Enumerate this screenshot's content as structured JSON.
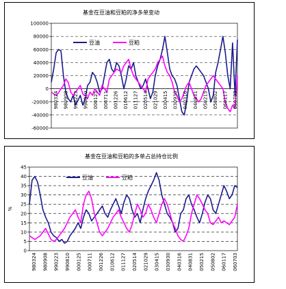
{
  "chart_data": [
    {
      "type": "line",
      "title": "基金在豆油和豆粕的净多单变动",
      "ylabel": "",
      "xlabel": "",
      "ylim": [
        -60000,
        100000
      ],
      "yticks": [
        -60000,
        -40000,
        -20000,
        0,
        20000,
        40000,
        60000,
        80000,
        100000
      ],
      "x_tick_labels": [
        "980324",
        "980908",
        "990223",
        "990810",
        "000125",
        "000711",
        "001226",
        "010612",
        "011127",
        "020514",
        "021029",
        "030415",
        "030930",
        "040316",
        "040831",
        "050215",
        "050802",
        "060117",
        "060703"
      ],
      "grid": "horizontal dashed",
      "legend_position": "top",
      "series": [
        {
          "name": "豆油",
          "color": "#1a1a8c",
          "values": [
            10000,
            30000,
            55000,
            60000,
            58000,
            20000,
            -5000,
            -15000,
            -20000,
            -10000,
            -25000,
            -18000,
            -10000,
            -25000,
            -15000,
            5000,
            10000,
            25000,
            20000,
            10000,
            -5000,
            0,
            20000,
            40000,
            45000,
            30000,
            25000,
            40000,
            35000,
            20000,
            0,
            15000,
            35000,
            30000,
            40000,
            20000,
            10000,
            0,
            5000,
            15000,
            0,
            -15000,
            -5000,
            20000,
            35000,
            45000,
            60000,
            80000,
            55000,
            30000,
            20000,
            15000,
            5000,
            -15000,
            -35000,
            -40000,
            -20000,
            10000,
            20000,
            30000,
            35000,
            30000,
            25000,
            20000,
            10000,
            0,
            -20000,
            -10000,
            25000,
            40000,
            60000,
            80000,
            55000,
            20000,
            0,
            70000,
            -10000,
            75000
          ]
        },
        {
          "name": "豆粕",
          "color": "#ff00ff",
          "values": [
            -5000,
            -8000,
            -10000,
            -6000,
            0,
            5000,
            15000,
            10000,
            -5000,
            -10000,
            -5000,
            0,
            5000,
            -8000,
            -10000,
            -15000,
            -5000,
            -10000,
            0,
            -5000,
            -10000,
            5000,
            0,
            -5000,
            15000,
            20000,
            25000,
            30000,
            28000,
            25000,
            35000,
            40000,
            45000,
            30000,
            20000,
            15000,
            10000,
            5000,
            0,
            -5000,
            15000,
            20000,
            25000,
            30000,
            40000,
            45000,
            50000,
            35000,
            25000,
            20000,
            10000,
            -5000,
            -10000,
            -20000,
            -15000,
            -5000,
            5000,
            10000,
            0,
            -10000,
            -15000,
            -20000,
            -15000,
            -5000,
            5000,
            10000,
            15000,
            20000,
            15000,
            10000,
            5000,
            0,
            -20000,
            -30000,
            -35000,
            -25000,
            -30000,
            20000
          ]
        }
      ]
    },
    {
      "type": "line",
      "title": "基金在豆油和豆粕的多单占总持仓比例",
      "ylabel": "%",
      "xlabel": "",
      "ylim": [
        0,
        45
      ],
      "yticks": [
        0,
        5,
        10,
        15,
        20,
        25,
        30,
        35,
        40,
        45
      ],
      "x_tick_labels": [
        "980324",
        "980908",
        "990223",
        "990810",
        "000125",
        "000711",
        "001226",
        "010612",
        "011127",
        "020514",
        "021029",
        "030415",
        "030930",
        "040316",
        "040831",
        "050215",
        "050802",
        "060117",
        "060703"
      ],
      "grid": "horizontal dashed",
      "legend_position": "top",
      "series": [
        {
          "name": "豆油",
          "color": "#1a1a8c",
          "values": [
            25,
            38,
            40,
            37,
            30,
            22,
            18,
            15,
            10,
            8,
            7,
            5,
            6,
            4,
            5,
            8,
            10,
            12,
            15,
            12,
            18,
            22,
            20,
            16,
            18,
            20,
            22,
            24,
            20,
            18,
            22,
            25,
            28,
            24,
            20,
            26,
            30,
            28,
            22,
            18,
            20,
            15,
            22,
            28,
            32,
            35,
            38,
            42,
            38,
            30,
            25,
            20,
            18,
            15,
            10,
            12,
            20,
            22,
            28,
            30,
            25,
            22,
            18,
            15,
            20,
            26,
            30,
            28,
            22,
            20,
            25,
            30,
            35,
            32,
            28,
            30,
            35,
            34
          ]
        },
        {
          "name": "豆粕",
          "color": "#ff00ff",
          "values": [
            8,
            7,
            6,
            7,
            8,
            10,
            12,
            9,
            6,
            5,
            6,
            8,
            10,
            12,
            15,
            18,
            20,
            22,
            18,
            15,
            25,
            30,
            32,
            28,
            20,
            15,
            10,
            8,
            10,
            12,
            15,
            18,
            20,
            22,
            18,
            15,
            12,
            10,
            14,
            20,
            25,
            22,
            18,
            20,
            25,
            22,
            18,
            15,
            20,
            25,
            28,
            25,
            20,
            15,
            12,
            8,
            6,
            5,
            8,
            12,
            20,
            25,
            30,
            28,
            25,
            22,
            20,
            15,
            14,
            16,
            18,
            15,
            16,
            15,
            14,
            16,
            18,
            25
          ]
        }
      ]
    }
  ]
}
